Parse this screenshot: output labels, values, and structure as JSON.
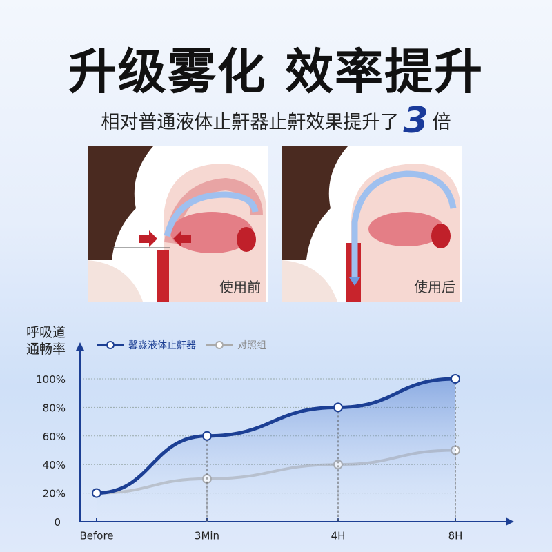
{
  "header": {
    "title": "升级雾化  效率提升",
    "subtitle_prefix": "相对普通液体止鼾器止鼾效果提升了",
    "subtitle_number": "3",
    "subtitle_suffix": "倍"
  },
  "panels": [
    {
      "caption": "使用前"
    },
    {
      "caption": "使用后"
    }
  ],
  "colors": {
    "accent": "#1a3a9a",
    "series_main": "#1c3f94",
    "series_control": "#a9a9a9",
    "area": "#3b6cc8"
  },
  "chart_data": {
    "type": "line",
    "ylabel": "呼吸道通畅率",
    "ylabel_lines": [
      "呼吸道",
      "通畅率"
    ],
    "categories": [
      "Before",
      "3Min",
      "4H",
      "8H"
    ],
    "y_ticks": [
      "0",
      "20%",
      "40%",
      "60%",
      "80%",
      "100%"
    ],
    "ylim": [
      0,
      100
    ],
    "grid": true,
    "legend_position": "top",
    "series": [
      {
        "name": "馨淼液体止鼾器",
        "values": [
          20,
          60,
          80,
          100
        ]
      },
      {
        "name": "对照组",
        "values": [
          20,
          30,
          40,
          50
        ]
      }
    ]
  }
}
